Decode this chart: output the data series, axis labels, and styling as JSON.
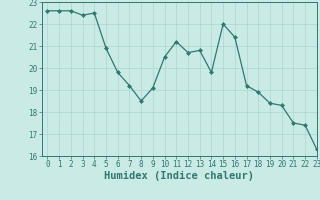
{
  "x": [
    0,
    1,
    2,
    3,
    4,
    5,
    6,
    7,
    8,
    9,
    10,
    11,
    12,
    13,
    14,
    15,
    16,
    17,
    18,
    19,
    20,
    21,
    22,
    23
  ],
  "y": [
    22.6,
    22.6,
    22.6,
    22.4,
    22.5,
    20.9,
    19.8,
    19.2,
    18.5,
    19.1,
    20.5,
    21.2,
    20.7,
    20.8,
    19.8,
    22.0,
    21.4,
    19.2,
    18.9,
    18.4,
    18.3,
    17.5,
    17.4,
    16.3
  ],
  "line_color": "#2d7a6e",
  "marker": "D",
  "marker_size": 2.0,
  "bg_color": "#caeae6",
  "grid_color": "#aed4cf",
  "xlabel": "Humidex (Indice chaleur)",
  "ylim": [
    16,
    23
  ],
  "xlim": [
    -0.5,
    23
  ],
  "yticks": [
    16,
    17,
    18,
    19,
    20,
    21,
    22,
    23
  ],
  "xticks": [
    0,
    1,
    2,
    3,
    4,
    5,
    6,
    7,
    8,
    9,
    10,
    11,
    12,
    13,
    14,
    15,
    16,
    17,
    18,
    19,
    20,
    21,
    22,
    23
  ],
  "tick_color": "#2d7a6e",
  "xlabel_fontsize": 7.5,
  "tick_fontsize": 5.5
}
